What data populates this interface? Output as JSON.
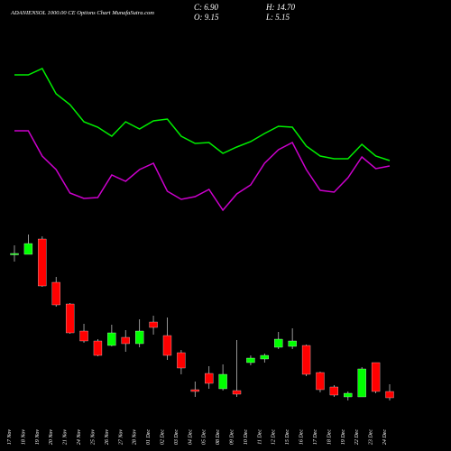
{
  "chart_data": {
    "type": "candlestick",
    "title": "ADANIENSOL 1000.00 CE Options Chart MunafaSutra.com",
    "stats": [
      "C: 6.90",
      "H: 14.70",
      "O: 9.15",
      "L: 5.15"
    ],
    "categories": [
      "17 Nov",
      "18 Nov",
      "19 Nov",
      "20 Nov",
      "21 Nov",
      "24 Nov",
      "25 Nov",
      "26 Nov",
      "27 Nov",
      "28 Nov",
      "01 Dec",
      "02 Dec",
      "03 Dec",
      "04 Dec",
      "05 Dec",
      "08 Dec",
      "09 Dec",
      "10 Dec",
      "11 Dec",
      "12 Dec",
      "15 Dec",
      "16 Dec",
      "17 Dec",
      "18 Dec",
      "19 Dec",
      "22 Dec",
      "23 Dec",
      "24 Dec"
    ],
    "open": [
      17.8,
      17.8,
      19.5,
      14.7,
      12.3,
      9.3,
      8.2,
      7.7,
      8.6,
      7.9,
      10.3,
      8.8,
      6.9,
      2.8,
      4.6,
      2.9,
      2.7,
      5.8,
      6.2,
      7.5,
      7.6,
      7.7,
      4.7,
      3.1,
      2.0,
      2.0,
      5.8,
      2.6
    ],
    "high": [
      18.8,
      20.0,
      19.8,
      15.3,
      12.4,
      10.1,
      8.4,
      10.0,
      9.4,
      10.6,
      11.0,
      10.8,
      7.2,
      3.7,
      5.4,
      5.6,
      8.3,
      6.6,
      6.8,
      9.2,
      9.6,
      7.8,
      4.8,
      3.3,
      2.6,
      5.3,
      5.8,
      3.4
    ],
    "low": [
      17.0,
      17.8,
      14.2,
      12.0,
      9.0,
      8.0,
      6.5,
      7.6,
      7.0,
      7.5,
      8.9,
      6.1,
      4.5,
      2.0,
      2.9,
      2.7,
      2.0,
      5.5,
      5.8,
      7.3,
      7.3,
      4.3,
      2.5,
      2.0,
      1.6,
      2.0,
      2.4,
      1.6
    ],
    "close": [
      17.9,
      19.0,
      14.3,
      12.2,
      9.1,
      8.2,
      6.6,
      9.1,
      7.9,
      9.3,
      9.7,
      6.6,
      5.2,
      2.6,
      3.5,
      4.5,
      2.3,
      6.3,
      6.6,
      8.4,
      8.2,
      4.5,
      2.8,
      2.2,
      2.4,
      5.1,
      2.6,
      1.9
    ],
    "up_color": "#00ff00",
    "down_color": "#ff0000",
    "ylim": [
      0,
      21
    ],
    "lines": [
      {
        "color": "#00ee00",
        "values": [
          177,
          177,
          184,
          156,
          144,
          125,
          119,
          109,
          125,
          117,
          126,
          128,
          109,
          101,
          102,
          90,
          97,
          103,
          112,
          120,
          119,
          98,
          87,
          84,
          84,
          100,
          87,
          82
        ]
      },
      {
        "color": "#cc00cc",
        "values": [
          115,
          115,
          87,
          72,
          46,
          40,
          41,
          66,
          59,
          72,
          79,
          48,
          39,
          42,
          50,
          27,
          45,
          55,
          79,
          94,
          102,
          72,
          49,
          47,
          63,
          86,
          73,
          76
        ]
      }
    ],
    "line_ylim": [
      0,
      200
    ]
  }
}
